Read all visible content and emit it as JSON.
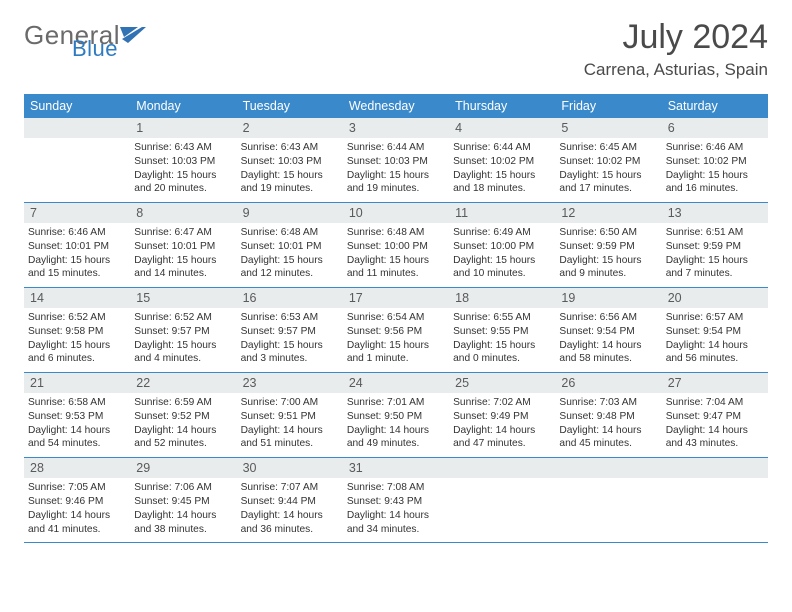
{
  "logo": {
    "word1": "General",
    "word2": "Blue",
    "gray_color": "#6a6a6a",
    "blue_color": "#2f7bc1"
  },
  "title": "July 2024",
  "subtitle": "Carrena, Asturias, Spain",
  "colors": {
    "header_bg": "#3a89cb",
    "header_text": "#ffffff",
    "daynum_bg": "#e8eced",
    "daynum_text": "#5a5a5a",
    "body_text": "#333333",
    "border": "#3a89cb"
  },
  "day_headers": [
    "Sunday",
    "Monday",
    "Tuesday",
    "Wednesday",
    "Thursday",
    "Friday",
    "Saturday"
  ],
  "first_day_col": 1,
  "days_in_month": 31,
  "days": {
    "1": {
      "sunrise": "6:43 AM",
      "sunset": "10:03 PM",
      "daylight": "15 hours and 20 minutes."
    },
    "2": {
      "sunrise": "6:43 AM",
      "sunset": "10:03 PM",
      "daylight": "15 hours and 19 minutes."
    },
    "3": {
      "sunrise": "6:44 AM",
      "sunset": "10:03 PM",
      "daylight": "15 hours and 19 minutes."
    },
    "4": {
      "sunrise": "6:44 AM",
      "sunset": "10:02 PM",
      "daylight": "15 hours and 18 minutes."
    },
    "5": {
      "sunrise": "6:45 AM",
      "sunset": "10:02 PM",
      "daylight": "15 hours and 17 minutes."
    },
    "6": {
      "sunrise": "6:46 AM",
      "sunset": "10:02 PM",
      "daylight": "15 hours and 16 minutes."
    },
    "7": {
      "sunrise": "6:46 AM",
      "sunset": "10:01 PM",
      "daylight": "15 hours and 15 minutes."
    },
    "8": {
      "sunrise": "6:47 AM",
      "sunset": "10:01 PM",
      "daylight": "15 hours and 14 minutes."
    },
    "9": {
      "sunrise": "6:48 AM",
      "sunset": "10:01 PM",
      "daylight": "15 hours and 12 minutes."
    },
    "10": {
      "sunrise": "6:48 AM",
      "sunset": "10:00 PM",
      "daylight": "15 hours and 11 minutes."
    },
    "11": {
      "sunrise": "6:49 AM",
      "sunset": "10:00 PM",
      "daylight": "15 hours and 10 minutes."
    },
    "12": {
      "sunrise": "6:50 AM",
      "sunset": "9:59 PM",
      "daylight": "15 hours and 9 minutes."
    },
    "13": {
      "sunrise": "6:51 AM",
      "sunset": "9:59 PM",
      "daylight": "15 hours and 7 minutes."
    },
    "14": {
      "sunrise": "6:52 AM",
      "sunset": "9:58 PM",
      "daylight": "15 hours and 6 minutes."
    },
    "15": {
      "sunrise": "6:52 AM",
      "sunset": "9:57 PM",
      "daylight": "15 hours and 4 minutes."
    },
    "16": {
      "sunrise": "6:53 AM",
      "sunset": "9:57 PM",
      "daylight": "15 hours and 3 minutes."
    },
    "17": {
      "sunrise": "6:54 AM",
      "sunset": "9:56 PM",
      "daylight": "15 hours and 1 minute."
    },
    "18": {
      "sunrise": "6:55 AM",
      "sunset": "9:55 PM",
      "daylight": "15 hours and 0 minutes."
    },
    "19": {
      "sunrise": "6:56 AM",
      "sunset": "9:54 PM",
      "daylight": "14 hours and 58 minutes."
    },
    "20": {
      "sunrise": "6:57 AM",
      "sunset": "9:54 PM",
      "daylight": "14 hours and 56 minutes."
    },
    "21": {
      "sunrise": "6:58 AM",
      "sunset": "9:53 PM",
      "daylight": "14 hours and 54 minutes."
    },
    "22": {
      "sunrise": "6:59 AM",
      "sunset": "9:52 PM",
      "daylight": "14 hours and 52 minutes."
    },
    "23": {
      "sunrise": "7:00 AM",
      "sunset": "9:51 PM",
      "daylight": "14 hours and 51 minutes."
    },
    "24": {
      "sunrise": "7:01 AM",
      "sunset": "9:50 PM",
      "daylight": "14 hours and 49 minutes."
    },
    "25": {
      "sunrise": "7:02 AM",
      "sunset": "9:49 PM",
      "daylight": "14 hours and 47 minutes."
    },
    "26": {
      "sunrise": "7:03 AM",
      "sunset": "9:48 PM",
      "daylight": "14 hours and 45 minutes."
    },
    "27": {
      "sunrise": "7:04 AM",
      "sunset": "9:47 PM",
      "daylight": "14 hours and 43 minutes."
    },
    "28": {
      "sunrise": "7:05 AM",
      "sunset": "9:46 PM",
      "daylight": "14 hours and 41 minutes."
    },
    "29": {
      "sunrise": "7:06 AM",
      "sunset": "9:45 PM",
      "daylight": "14 hours and 38 minutes."
    },
    "30": {
      "sunrise": "7:07 AM",
      "sunset": "9:44 PM",
      "daylight": "14 hours and 36 minutes."
    },
    "31": {
      "sunrise": "7:08 AM",
      "sunset": "9:43 PM",
      "daylight": "14 hours and 34 minutes."
    }
  }
}
